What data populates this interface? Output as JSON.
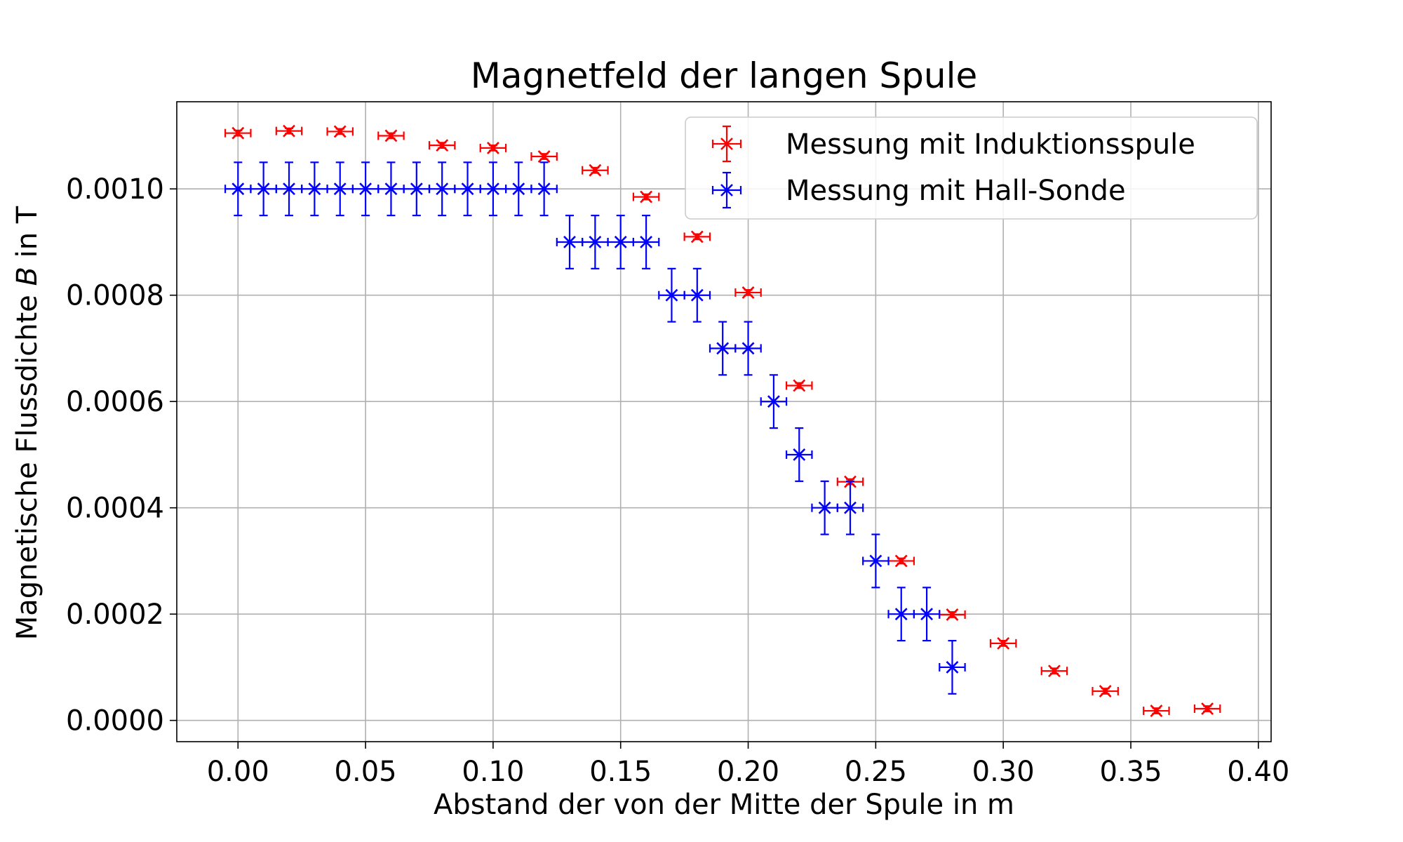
{
  "chart_data": {
    "type": "scatter",
    "title": "Magnetfeld der langen Spule",
    "xlabel": "Abstand der von der Mitte der Spule in m",
    "ylabel_prefix": "Magnetische Flussdichte ",
    "ylabel_symbol": "B",
    "ylabel_suffix": " in T",
    "xlim": [
      -0.024,
      0.405
    ],
    "ylim": [
      -4e-05,
      0.001164
    ],
    "xticks": [
      0.0,
      0.05,
      0.1,
      0.15,
      0.2,
      0.25,
      0.3,
      0.35,
      0.4
    ],
    "xtick_labels": [
      "0.00",
      "0.05",
      "0.10",
      "0.15",
      "0.20",
      "0.25",
      "0.30",
      "0.35",
      "0.40"
    ],
    "yticks": [
      0.0,
      0.0002,
      0.0004,
      0.0006,
      0.0008,
      0.001
    ],
    "ytick_labels": [
      "0.0000",
      "0.0002",
      "0.0004",
      "0.0006",
      "0.0008",
      "0.0010"
    ],
    "grid": true,
    "legend_position": "top-right",
    "series": [
      {
        "name": "Messung mit Induktionsspule",
        "color": "#ff0000",
        "marker": "x",
        "x": [
          0.0,
          0.02,
          0.04,
          0.06,
          0.08,
          0.1,
          0.12,
          0.14,
          0.16,
          0.18,
          0.2,
          0.22,
          0.24,
          0.26,
          0.28,
          0.3,
          0.32,
          0.34,
          0.36,
          0.38
        ],
        "y": [
          0.001105,
          0.001109,
          0.001108,
          0.0011,
          0.001082,
          0.001077,
          0.001061,
          0.001035,
          0.000985,
          0.00091,
          0.000805,
          0.00063,
          0.000449,
          0.0003,
          0.000199,
          0.000145,
          9.3e-05,
          5.5e-05,
          1.8e-05,
          2.2e-05
        ],
        "x_err": 0.005,
        "y_err": 5e-06
      },
      {
        "name": "Messung mit Hall-Sonde",
        "color": "#0000ff",
        "marker": "x",
        "x": [
          0.0,
          0.01,
          0.02,
          0.03,
          0.04,
          0.05,
          0.06,
          0.07,
          0.08,
          0.09,
          0.1,
          0.11,
          0.12,
          0.13,
          0.14,
          0.15,
          0.16,
          0.17,
          0.18,
          0.19,
          0.2,
          0.21,
          0.22,
          0.23,
          0.24,
          0.25,
          0.26,
          0.27,
          0.28
        ],
        "y": [
          0.001,
          0.001,
          0.001,
          0.001,
          0.001,
          0.001,
          0.001,
          0.001,
          0.001,
          0.001,
          0.001,
          0.001,
          0.001,
          0.0009,
          0.0009,
          0.0009,
          0.0009,
          0.0008,
          0.0008,
          0.0007,
          0.0007,
          0.0006,
          0.0005,
          0.0004,
          0.0004,
          0.0003,
          0.0002,
          0.0002,
          0.0001
        ],
        "x_err": 0.005,
        "y_err": 5e-05
      }
    ]
  }
}
